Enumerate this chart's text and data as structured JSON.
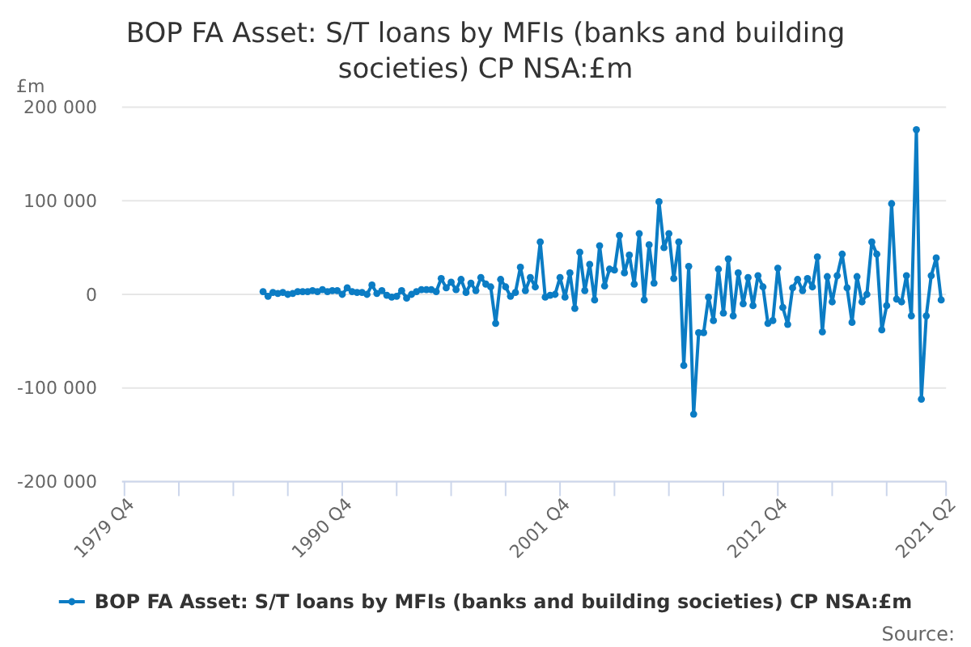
{
  "chart_data": {
    "type": "line",
    "title": "BOP FA Asset: S/T loans by MFIs (banks and building societies) CP NSA:£m",
    "ylabel": "£m",
    "annotations": [
      "Source:"
    ],
    "xlim": [
      "1979-10",
      "2021-04"
    ],
    "xticks": [
      {
        "value": "1979-10",
        "label": "1979 Q4"
      },
      {
        "value": "1982-07",
        "label": null
      },
      {
        "value": "1985-04",
        "label": null
      },
      {
        "value": "1988-01",
        "label": null
      },
      {
        "value": "1990-10",
        "label": "1990 Q4"
      },
      {
        "value": "1993-07",
        "label": null
      },
      {
        "value": "1996-04",
        "label": null
      },
      {
        "value": "1999-01",
        "label": null
      },
      {
        "value": "2001-10",
        "label": "2001 Q4"
      },
      {
        "value": "2004-07",
        "label": null
      },
      {
        "value": "2007-04",
        "label": null
      },
      {
        "value": "2010-01",
        "label": null
      },
      {
        "value": "2012-10",
        "label": "2012 Q4"
      },
      {
        "value": "2015-07",
        "label": null
      },
      {
        "value": "2018-04",
        "label": null
      },
      {
        "value": "2021-04",
        "label": "2021 Q2"
      }
    ],
    "ylim": [
      -200000,
      200000
    ],
    "yticks": [
      {
        "value": -200000,
        "label": "-200 000"
      },
      {
        "value": -100000,
        "label": "-100 000"
      },
      0,
      {
        "value": 100000,
        "label": "100 000"
      },
      {
        "value": 200000,
        "label": "200 000"
      }
    ],
    "grid": "y",
    "legend": "bottom",
    "marker": "circle",
    "line_style": "solid",
    "x": [
      "1986-10",
      "1987-01",
      "1987-04",
      "1987-07",
      "1987-10",
      "1988-01",
      "1988-04",
      "1988-07",
      "1988-10",
      "1989-01",
      "1989-04",
      "1989-07",
      "1989-10",
      "1990-01",
      "1990-04",
      "1990-07",
      "1990-10",
      "1991-01",
      "1991-04",
      "1991-07",
      "1991-10",
      "1992-01",
      "1992-04",
      "1992-07",
      "1992-10",
      "1993-01",
      "1993-04",
      "1993-07",
      "1993-10",
      "1994-01",
      "1994-04",
      "1994-07",
      "1994-10",
      "1995-01",
      "1995-04",
      "1995-07",
      "1995-10",
      "1996-01",
      "1996-04",
      "1996-07",
      "1996-10",
      "1997-01",
      "1997-04",
      "1997-07",
      "1997-10",
      "1998-01",
      "1998-04",
      "1998-07",
      "1998-10",
      "1999-01",
      "1999-04",
      "1999-07",
      "1999-10",
      "2000-01",
      "2000-04",
      "2000-07",
      "2000-10",
      "2001-01",
      "2001-04",
      "2001-07",
      "2001-10",
      "2002-01",
      "2002-04",
      "2002-07",
      "2002-10",
      "2003-01",
      "2003-04",
      "2003-07",
      "2003-10",
      "2004-01",
      "2004-04",
      "2004-07",
      "2004-10",
      "2005-01",
      "2005-04",
      "2005-07",
      "2005-10",
      "2006-01",
      "2006-04",
      "2006-07",
      "2006-10",
      "2007-01",
      "2007-04",
      "2007-07",
      "2007-10",
      "2008-01",
      "2008-04",
      "2008-07",
      "2008-10",
      "2009-01",
      "2009-04",
      "2009-07",
      "2009-10",
      "2010-01",
      "2010-04",
      "2010-07",
      "2010-10",
      "2011-01",
      "2011-04",
      "2011-07",
      "2011-10",
      "2012-01",
      "2012-04",
      "2012-07",
      "2012-10",
      "2013-01",
      "2013-04",
      "2013-07",
      "2013-10",
      "2014-01",
      "2014-04",
      "2014-07",
      "2014-10",
      "2015-01",
      "2015-04",
      "2015-07",
      "2015-10",
      "2016-01",
      "2016-04",
      "2016-07",
      "2016-10",
      "2017-01",
      "2017-04",
      "2017-07",
      "2017-10",
      "2018-01",
      "2018-04",
      "2018-07",
      "2018-10",
      "2019-01",
      "2019-04",
      "2019-07",
      "2019-10",
      "2020-01",
      "2020-04",
      "2020-07",
      "2020-10",
      "2021-01"
    ],
    "series": [
      {
        "name": "BOP FA Asset: S/T loans by MFIs (banks and building societies) CP NSA:£m",
        "color": "#0b7cc4",
        "values": [
          3000,
          -2000,
          2000,
          1000,
          2000,
          0,
          1000,
          3000,
          3000,
          3000,
          4000,
          3000,
          5000,
          3000,
          4000,
          4000,
          0,
          7000,
          3000,
          2000,
          2000,
          0,
          10000,
          1000,
          4000,
          -1000,
          -3000,
          -2000,
          4000,
          -4000,
          0,
          3000,
          5000,
          5000,
          5000,
          3000,
          17000,
          7000,
          13000,
          5000,
          16000,
          2000,
          12000,
          4000,
          18000,
          11000,
          8000,
          -31000,
          16000,
          8000,
          -2000,
          2000,
          29000,
          4000,
          18000,
          8000,
          56000,
          -3000,
          -1000,
          0,
          18000,
          -3000,
          23000,
          -15000,
          45000,
          4000,
          32000,
          -6000,
          52000,
          9000,
          27000,
          26000,
          63000,
          23000,
          42000,
          11000,
          65000,
          -6000,
          53000,
          12000,
          99000,
          50000,
          65000,
          17000,
          56000,
          -76000,
          30000,
          -128000,
          -41000,
          -41000,
          -3000,
          -28000,
          27000,
          -20000,
          38000,
          -23000,
          23000,
          -10000,
          18000,
          -12000,
          20000,
          8000,
          -31000,
          -28000,
          28000,
          -14000,
          -32000,
          7000,
          16000,
          4000,
          17000,
          8000,
          40000,
          -40000,
          19000,
          -8000,
          20000,
          43000,
          7000,
          -30000,
          19000,
          -8000,
          0,
          56000,
          43000,
          -38000,
          -12000,
          97000,
          -5000,
          -8000,
          20000,
          -23000,
          176000,
          -112000,
          -23000,
          20000,
          39000,
          -6000
        ]
      }
    ]
  }
}
